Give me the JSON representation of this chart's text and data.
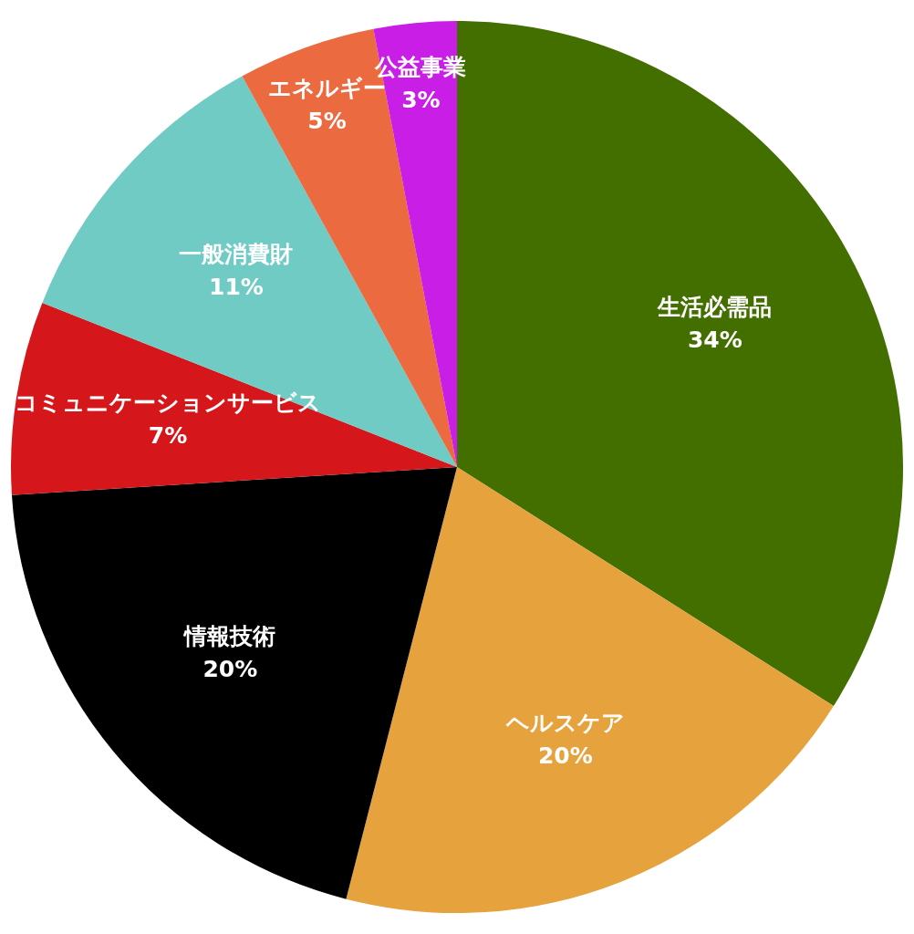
{
  "chart_data": {
    "type": "pie",
    "categories": [
      "生活必需品",
      "ヘルスケア",
      "情報技術",
      "コミュニケーションサービス",
      "一般消費財",
      "エネルギー",
      "公益事業"
    ],
    "values": [
      34,
      20,
      20,
      7,
      11,
      5,
      3
    ],
    "value_labels": [
      "34%",
      "20%",
      "20%",
      "7%",
      "11%",
      "5%",
      "3%"
    ],
    "colors": [
      "#436f00",
      "#e5a23d",
      "#000000",
      "#d5161b",
      "#6fcbc3",
      "#ec6a40",
      "#c81ee6"
    ],
    "legend": false
  }
}
